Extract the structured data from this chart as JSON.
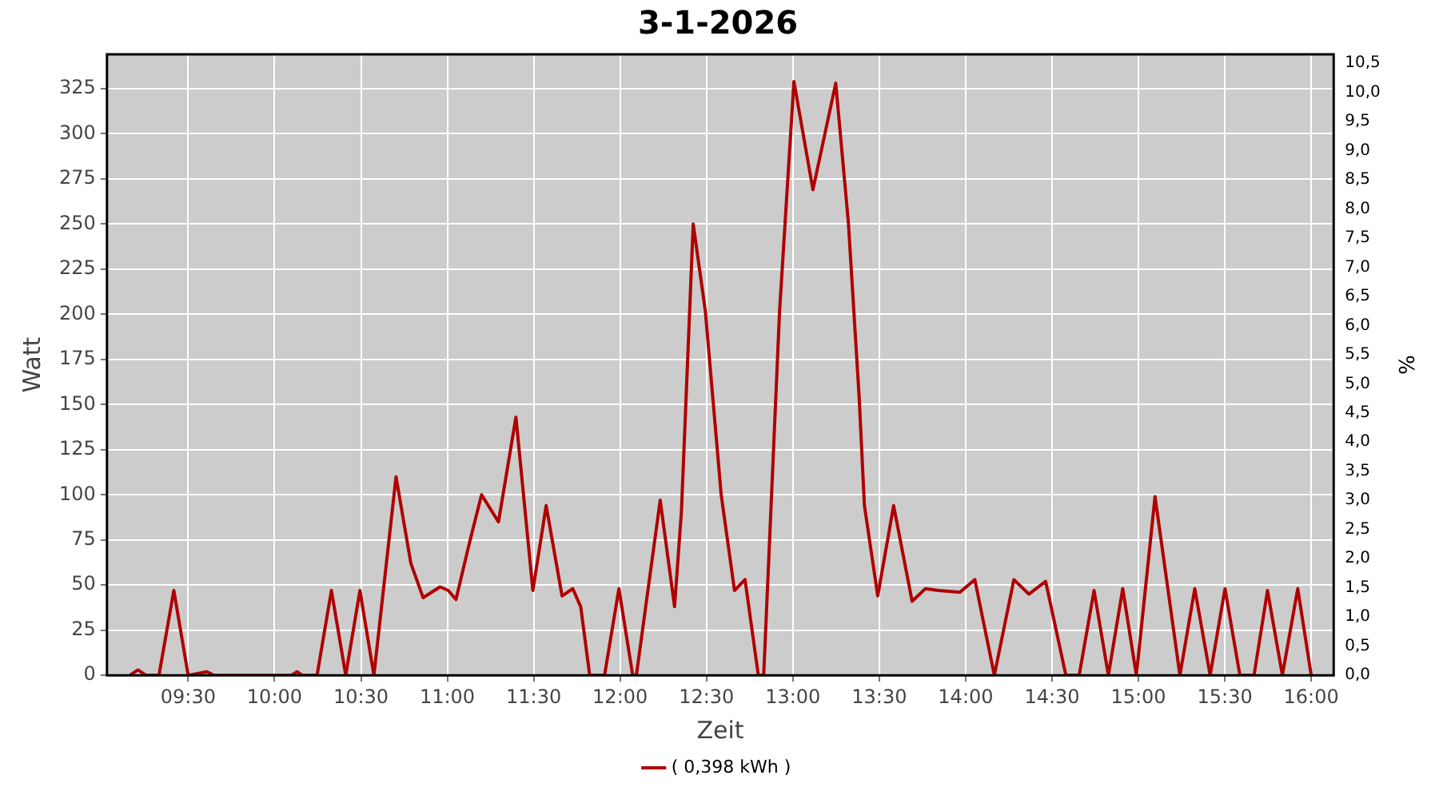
{
  "chart_data": {
    "type": "line",
    "title": "3-1-2026",
    "xlabel": "Zeit",
    "ylabel": "Watt",
    "y2label": "%",
    "xlim": [
      9.03,
      16.13
    ],
    "xticks": [
      {
        "value": 9.5,
        "label": "09:30"
      },
      {
        "value": 10,
        "label": "10:00"
      },
      {
        "value": 10.5,
        "label": "10:30"
      },
      {
        "value": 11,
        "label": "11:00"
      },
      {
        "value": 11.5,
        "label": "11:30"
      },
      {
        "value": 12,
        "label": "12:00"
      },
      {
        "value": 12.5,
        "label": "12:30"
      },
      {
        "value": 13,
        "label": "13:00"
      },
      {
        "value": 13.5,
        "label": "13:30"
      },
      {
        "value": 14,
        "label": "14:00"
      },
      {
        "value": 14.5,
        "label": "14:30"
      },
      {
        "value": 15,
        "label": "15:00"
      },
      {
        "value": 15.5,
        "label": "15:30"
      },
      {
        "value": 16,
        "label": "16:00"
      }
    ],
    "ylim": [
      0,
      344
    ],
    "yticks": [
      0,
      25,
      50,
      75,
      100,
      125,
      150,
      175,
      200,
      225,
      250,
      275,
      300,
      325
    ],
    "y2lim": [
      0,
      10.65
    ],
    "y2ticks": [
      {
        "value": 0,
        "label": "0,0"
      },
      {
        "value": 0.5,
        "label": "0,5"
      },
      {
        "value": 1,
        "label": "1,0"
      },
      {
        "value": 1.5,
        "label": "1,5"
      },
      {
        "value": 2,
        "label": "2,0"
      },
      {
        "value": 2.5,
        "label": "2,5"
      },
      {
        "value": 3,
        "label": "3,0"
      },
      {
        "value": 3.5,
        "label": "3,5"
      },
      {
        "value": 4,
        "label": "4,0"
      },
      {
        "value": 4.5,
        "label": "4,5"
      },
      {
        "value": 5,
        "label": "5,0"
      },
      {
        "value": 5.5,
        "label": "5,5"
      },
      {
        "value": 6,
        "label": "6,0"
      },
      {
        "value": 6.5,
        "label": "6,5"
      },
      {
        "value": 7,
        "label": "7,0"
      },
      {
        "value": 7.5,
        "label": "7,5"
      },
      {
        "value": 8,
        "label": "8,0"
      },
      {
        "value": 8.5,
        "label": "8,5"
      },
      {
        "value": 9,
        "label": "9,0"
      },
      {
        "value": 9.5,
        "label": "9,5"
      },
      {
        "value": 10,
        "label": "10,0"
      },
      {
        "value": 10.5,
        "label": "10,5"
      }
    ],
    "grid": true,
    "legend": "bottom",
    "marker": "none",
    "line_style": "solid",
    "series": [
      {
        "name": "( 0,398 kWh )",
        "color": "#b00000",
        "x": [
          9.163,
          9.209,
          9.255,
          9.331,
          9.417,
          9.5,
          9.608,
          9.65,
          10.098,
          10.13,
          10.16,
          10.246,
          10.329,
          10.412,
          10.494,
          10.575,
          10.703,
          10.789,
          10.86,
          10.958,
          11.005,
          11.05,
          11.127,
          11.198,
          11.296,
          11.397,
          11.495,
          11.572,
          11.664,
          11.726,
          11.772,
          11.824,
          11.91,
          11.993,
          12.073,
          12.094,
          12.232,
          12.315,
          12.355,
          12.423,
          12.493,
          12.585,
          12.662,
          12.723,
          12.8,
          12.831,
          12.923,
          13.006,
          13.116,
          13.248,
          13.321,
          13.383,
          13.414,
          13.491,
          13.583,
          13.69,
          13.767,
          13.843,
          13.966,
          14.053,
          14.166,
          14.279,
          14.366,
          14.463,
          14.58,
          14.657,
          14.743,
          14.826,
          14.909,
          14.988,
          15.096,
          15.24,
          15.326,
          15.415,
          15.501,
          15.587,
          15.669,
          15.747,
          15.833,
          15.922,
          16.0
        ],
        "values": [
          0,
          3,
          0,
          0,
          47,
          0,
          2,
          0,
          0,
          2,
          0,
          0,
          47,
          0,
          47,
          0,
          110,
          62,
          43,
          49,
          47,
          42,
          73,
          100,
          85,
          143,
          47,
          94,
          44,
          48,
          38,
          0,
          0,
          48,
          0,
          0,
          97,
          38,
          91,
          250,
          202,
          100,
          47,
          53,
          0,
          0,
          202,
          329,
          269,
          328,
          251,
          155,
          94,
          44,
          94,
          41,
          48,
          47,
          46,
          53,
          0,
          53,
          45,
          52,
          0,
          0,
          47,
          0,
          48,
          0,
          99,
          0,
          48,
          0,
          48,
          0,
          0,
          47,
          0,
          48,
          0
        ]
      }
    ]
  }
}
